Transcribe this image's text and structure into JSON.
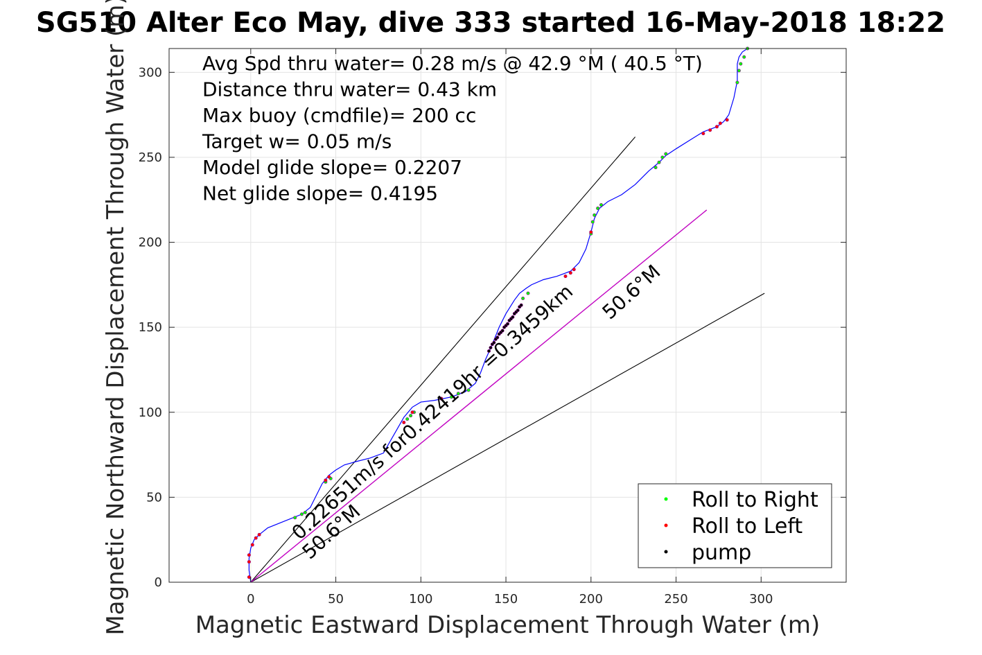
{
  "chart_data": {
    "type": "line",
    "title": "SG510 Alter Eco May, dive 333 started 16-May-2018 18:22",
    "xlabel": "Magnetic Eastward Displacement Through Water (m)",
    "ylabel": "Magnetic Northward Displacement Through Water (m)",
    "xlim": [
      -48,
      350
    ],
    "ylim": [
      0,
      314
    ],
    "xticks": [
      0,
      50,
      100,
      150,
      200,
      250,
      300
    ],
    "yticks": [
      0,
      50,
      100,
      150,
      200,
      250,
      300
    ],
    "grid": true,
    "legend_position": "bottom-right",
    "annotations": [
      "Avg Spd thru water=  0.28 m/s @  42.9 °M ( 40.5 °T)",
      "Distance thru water=  0.43 km",
      "Max buoy (cmdfile)= 200 cc",
      "Target w= 0.05 m/s",
      "Model glide slope= 0.2207",
      "Net glide slope= 0.4195"
    ],
    "heading_labels": [
      "50.6°M",
      "50.6°M"
    ],
    "current_label": "0.22651m/s for0.42419hr =0.3459km",
    "colors": {
      "track": "#0000ff",
      "net": "#cc00cc",
      "guide": "#000000",
      "roll_right": "#00ff00",
      "roll_left": "#ff0000",
      "pump": "#000000",
      "point_outline": "#8b008b"
    },
    "series": [
      {
        "name": "track",
        "color": "#0000ff",
        "x": [
          0,
          -1,
          -1,
          0,
          2,
          5,
          10,
          20,
          30,
          35,
          38,
          42,
          46,
          50,
          55,
          62,
          70,
          78,
          82,
          86,
          90,
          95,
          100,
          108,
          118,
          126,
          132,
          135,
          138,
          142,
          146,
          150,
          155,
          158,
          162,
          165,
          172,
          180,
          188,
          193,
          197,
          200,
          202,
          205,
          210,
          218,
          226,
          234,
          240,
          244,
          250,
          258,
          266,
          274,
          278,
          281,
          284,
          286,
          286,
          287,
          289,
          292
        ],
        "y": [
          0,
          7,
          14,
          20,
          25,
          28,
          32,
          36,
          40,
          44,
          50,
          58,
          63,
          66,
          69,
          71,
          73,
          76,
          83,
          90,
          97,
          103,
          106,
          107,
          109,
          112,
          117,
          123,
          131,
          140,
          150,
          158,
          166,
          170,
          173,
          175,
          178,
          180,
          183,
          188,
          196,
          206,
          214,
          220,
          224,
          228,
          234,
          242,
          247,
          251,
          255,
          260,
          265,
          268,
          271,
          275,
          285,
          295,
          305,
          309,
          312,
          314
        ]
      },
      {
        "name": "net",
        "color": "#cc00cc",
        "x": [
          0,
          268
        ],
        "y": [
          0,
          219
        ]
      }
    ],
    "guide_lines": [
      {
        "x": [
          0,
          226
        ],
        "y": [
          0,
          262
        ]
      },
      {
        "x": [
          0,
          302
        ],
        "y": [
          0,
          170
        ]
      },
      {
        "x": [
          0,
          268
        ],
        "y": [
          0,
          219
        ]
      }
    ],
    "markers": [
      {
        "name": "Roll to Right",
        "color": "#00ff00",
        "points": [
          [
            26,
            38
          ],
          [
            30,
            40
          ],
          [
            32,
            41
          ],
          [
            44,
            59
          ],
          [
            47,
            61
          ],
          [
            92,
            96
          ],
          [
            94,
            98
          ],
          [
            96,
            100
          ],
          [
            112,
            108
          ],
          [
            118,
            109
          ],
          [
            122,
            111
          ],
          [
            128,
            113
          ],
          [
            160,
            167
          ],
          [
            163,
            170
          ],
          [
            200,
            205
          ],
          [
            201,
            212
          ],
          [
            202,
            216
          ],
          [
            204,
            220
          ],
          [
            206,
            222
          ],
          [
            238,
            244
          ],
          [
            240,
            247
          ],
          [
            242,
            250
          ],
          [
            244,
            252
          ],
          [
            286,
            294
          ],
          [
            287,
            301
          ],
          [
            288,
            305
          ],
          [
            290,
            309
          ],
          [
            292,
            314
          ]
        ]
      },
      {
        "name": "Roll to Left",
        "color": "#ff0000",
        "points": [
          [
            -1,
            3
          ],
          [
            -1,
            12
          ],
          [
            -1,
            16
          ],
          [
            1,
            22
          ],
          [
            3,
            26
          ],
          [
            5,
            28
          ],
          [
            44,
            60
          ],
          [
            46,
            62
          ],
          [
            90,
            94
          ],
          [
            95,
            100
          ],
          [
            112,
            108
          ],
          [
            185,
            180
          ],
          [
            188,
            182
          ],
          [
            190,
            184
          ],
          [
            200,
            206
          ],
          [
            266,
            264
          ],
          [
            270,
            266
          ],
          [
            274,
            268
          ],
          [
            276,
            270
          ],
          [
            280,
            272
          ]
        ]
      },
      {
        "name": "pump",
        "color": "#000000",
        "points": [
          [
            142,
            140
          ],
          [
            143,
            141
          ],
          [
            144,
            143
          ],
          [
            145,
            144
          ],
          [
            146,
            146
          ],
          [
            147,
            147
          ],
          [
            148,
            148
          ],
          [
            149,
            150
          ],
          [
            150,
            151
          ],
          [
            151,
            152
          ],
          [
            152,
            154
          ],
          [
            153,
            155
          ],
          [
            154,
            156
          ],
          [
            155,
            158
          ],
          [
            156,
            159
          ],
          [
            157,
            160
          ],
          [
            158,
            162
          ],
          [
            159,
            163
          ],
          [
            140,
            136
          ],
          [
            141,
            138
          ]
        ]
      }
    ]
  }
}
